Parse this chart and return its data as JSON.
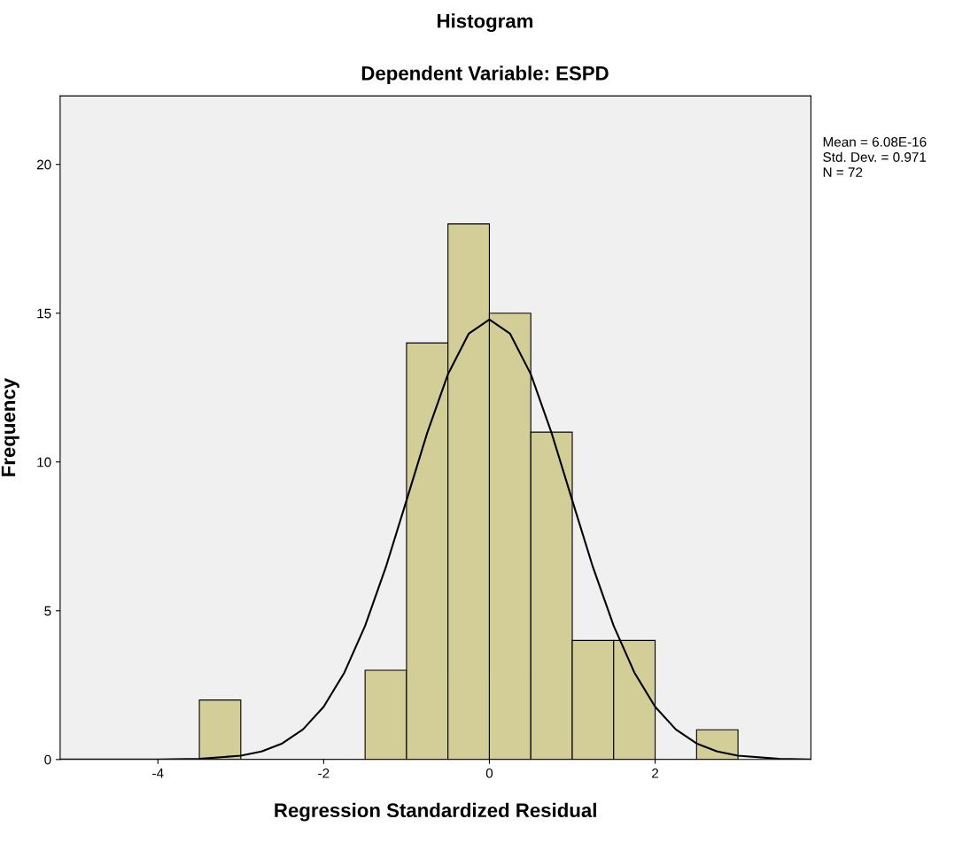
{
  "chart_data": {
    "type": "histogram",
    "title": "Histogram",
    "subtitle": "Dependent Variable: ESPD",
    "xlabel": "Regression Standardized Residual",
    "ylabel": "Frequency",
    "xlim": [
      -5.18,
      3.88
    ],
    "ylim": [
      0,
      22.3
    ],
    "xticks": [
      -4,
      -2,
      0,
      2
    ],
    "yticks": [
      0,
      5,
      10,
      15,
      20
    ],
    "grid": false,
    "legend": false,
    "annotations": [
      "Mean = 6.08E-16",
      "Std. Dev. = 0.971",
      "N = 72"
    ],
    "series": [
      {
        "color": "#d3ce97",
        "bins": [
          -3.5,
          -3.0,
          -2.5,
          -2.0,
          -1.5,
          -1.0,
          -0.5,
          0.0,
          0.5,
          1.0,
          1.5,
          2.0,
          2.5,
          3.0
        ],
        "values": [
          2,
          0,
          0,
          0,
          3,
          14,
          18,
          15,
          11,
          4,
          4,
          0,
          1
        ]
      },
      {
        "type": "line",
        "color": "#000000",
        "x": [
          -5.18,
          -4.5,
          -4.0,
          -3.5,
          -3.0,
          -2.75,
          -2.5,
          -2.25,
          -2.0,
          -1.75,
          -1.5,
          -1.25,
          -1.0,
          -0.75,
          -0.5,
          -0.25,
          0.0,
          0.25,
          0.5,
          0.75,
          1.0,
          1.25,
          1.5,
          1.75,
          2.0,
          2.25,
          2.5,
          2.75,
          3.0,
          3.5,
          3.88
        ],
        "values": [
          0.0,
          0.0,
          0.0,
          0.02,
          0.13,
          0.27,
          0.54,
          1.01,
          1.77,
          2.92,
          4.49,
          6.46,
          8.71,
          10.98,
          12.95,
          14.31,
          14.79,
          14.31,
          12.95,
          10.98,
          8.71,
          6.46,
          4.49,
          2.92,
          1.77,
          1.01,
          0.54,
          0.27,
          0.13,
          0.02,
          0.0
        ]
      }
    ]
  }
}
